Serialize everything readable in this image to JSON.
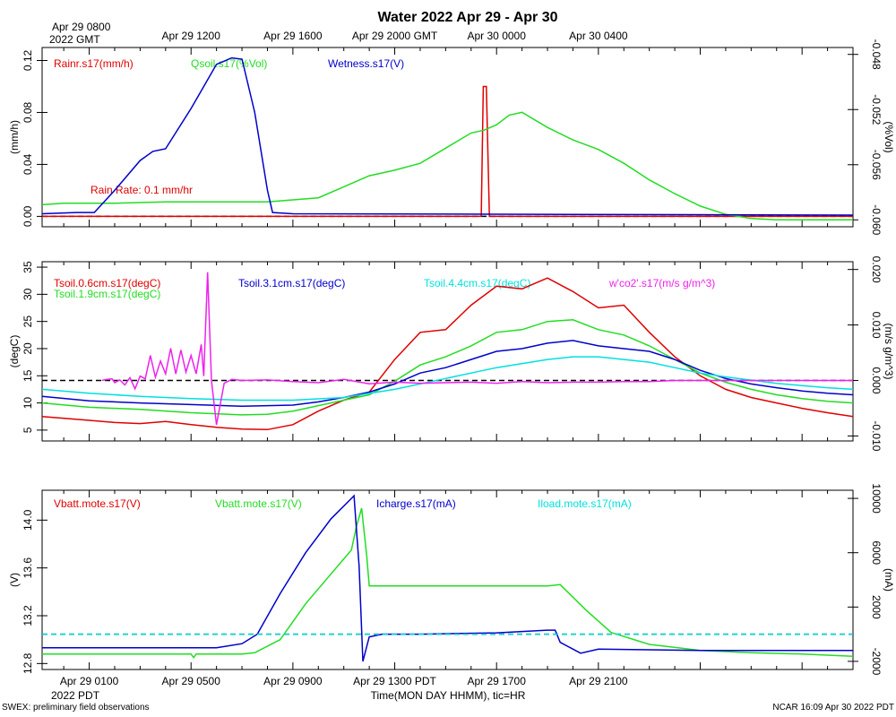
{
  "title": "Water 2022 Apr 29 - Apr 30",
  "top_axis": {
    "first_label": [
      "Apr 29 0800",
      "2022 GMT"
    ],
    "labels": [
      "Apr 29 1200",
      "Apr 29 1600",
      "Apr 29 2000 GMT",
      "Apr 30 0000",
      "Apr 30 0400"
    ]
  },
  "bottom_axis": {
    "labels": [
      "Apr 29 0100",
      "Apr 29 0500",
      "Apr 29 0900",
      "Apr 29 1300 PDT",
      "Apr 29 1700",
      "Apr 29 2100"
    ],
    "year_label": "2022 PDT",
    "xlabel": "Time(MON DAY HHMM), tic=HR"
  },
  "footer": {
    "left": "SWEX: preliminary field observations",
    "right": "NCAR 16:09 Apr 30 2022 PDT"
  },
  "colors": {
    "red": "#e00000",
    "green": "#22dd22",
    "blue": "#0000cc",
    "cyan": "#00e0e0",
    "magenta": "#ee22ee",
    "black": "#000000"
  },
  "chart_data": [
    {
      "type": "line",
      "panel": "top",
      "x_units": "hours since Apr 29 0000 PDT",
      "xlim": [
        -0.85,
        31
      ],
      "ylabel_left": "(mm/h)",
      "ylabel_right": "(%Vol)",
      "ylim_left": [
        -0.008,
        0.13
      ],
      "yticks_left": [
        "0.00",
        "0.04",
        "0.08",
        "0.12"
      ],
      "ytick_values_left": [
        0,
        0.04,
        0.08,
        0.12
      ],
      "ylim_right": [
        -0.0605,
        -0.0475
      ],
      "yticks_right": [
        "-0.060",
        "-0.056",
        "-0.052",
        "-0.048"
      ],
      "ytick_values_right": [
        -0.06,
        -0.056,
        -0.052,
        -0.048
      ],
      "legend": [
        "Rainr.s17(mm/h)",
        "Qsoil.s17(%Vol)",
        "Wetness.s17(V)"
      ],
      "annotation": "Rain Rate: 0.1 mm/hr",
      "series": [
        {
          "name": "Rainr.s17(mm/h)",
          "color": "red",
          "axis": "left",
          "x": [
            -0.85,
            16.4,
            16.48,
            16.6,
            16.72,
            31
          ],
          "y": [
            0,
            0,
            0.1,
            0.1,
            0,
            0
          ]
        },
        {
          "name": "Qsoil.s17(%Vol)",
          "color": "green",
          "axis": "right",
          "x": [
            -0.85,
            0,
            2,
            4,
            6,
            8,
            10,
            11,
            12,
            13,
            14,
            15,
            16,
            16.5,
            17,
            17.5,
            18,
            19,
            20,
            21,
            22,
            23,
            24,
            25,
            26,
            27,
            28,
            29,
            30,
            31
          ],
          "y": [
            -0.0589,
            -0.0588,
            -0.0588,
            -0.0587,
            -0.0587,
            -0.0587,
            -0.0584,
            -0.0576,
            -0.0568,
            -0.0564,
            -0.0559,
            -0.0548,
            -0.0537,
            -0.0535,
            -0.0531,
            -0.0524,
            -0.0522,
            -0.0533,
            -0.0542,
            -0.0549,
            -0.0559,
            -0.0571,
            -0.0581,
            -0.059,
            -0.0596,
            -0.0599,
            -0.06,
            -0.06,
            -0.06,
            -0.06
          ]
        },
        {
          "name": "Wetness.s17(V)",
          "color": "blue",
          "axis": "left",
          "x": [
            -0.85,
            0.5,
            1.2,
            2,
            3,
            3.5,
            4,
            5,
            5.5,
            6,
            6.6,
            7,
            7.5,
            8,
            8.2,
            9,
            31
          ],
          "y": [
            0.002,
            0.003,
            0.003,
            0.02,
            0.043,
            0.05,
            0.052,
            0.083,
            0.1,
            0.117,
            0.122,
            0.121,
            0.08,
            0.02,
            0.003,
            0.002,
            0.001
          ]
        }
      ],
      "reference_line": {
        "y": 0,
        "style": "dashed"
      }
    },
    {
      "type": "line",
      "panel": "middle",
      "x_units": "hours since Apr 29 0000 PDT",
      "xlim": [
        -0.85,
        31
      ],
      "ylabel_left": "(degC)",
      "ylabel_right": "(m/s g/m^3)",
      "ylim_left": [
        3,
        36
      ],
      "yticks_left": [
        "5",
        "10",
        "15",
        "20",
        "25",
        "30",
        "35"
      ],
      "ytick_values_left": [
        5,
        10,
        15,
        20,
        25,
        30,
        35
      ],
      "ylim_right": [
        -0.0109,
        0.0214
      ],
      "yticks_right": [
        "-0.010",
        "0.000",
        "0.010",
        "0.020"
      ],
      "ytick_values_right": [
        -0.01,
        0,
        0.01,
        0.02
      ],
      "legend": [
        "Tsoil.0.6cm.s17(degC)",
        "Tsoil.1.9cm.s17(degC)",
        "Tsoil.3.1cm.s17(degC)",
        "Tsoil.4.4cm.s17(degC)",
        "w'co2'.s17(m/s g/m^3)"
      ],
      "series": [
        {
          "name": "Tsoil.0.6cm.s17(degC)",
          "color": "red",
          "axis": "left",
          "x": [
            -0.85,
            1,
            2,
            3,
            4,
            5,
            6,
            7,
            8,
            9,
            10,
            11,
            12,
            13,
            14,
            15,
            16,
            17,
            18,
            19,
            20,
            21,
            22,
            23,
            24,
            25,
            26,
            27,
            28,
            29,
            30,
            31
          ],
          "y": [
            7.5,
            6.8,
            6.4,
            6.2,
            6.6,
            6.0,
            5.5,
            5.2,
            5.1,
            6.0,
            8.5,
            10.5,
            12.0,
            18.0,
            23.0,
            23.5,
            28.0,
            31.5,
            31.0,
            33.0,
            30.5,
            27.5,
            28.0,
            23.0,
            18.5,
            15.0,
            12.5,
            11.0,
            10.0,
            9.0,
            8.2,
            7.5
          ]
        },
        {
          "name": "Tsoil.1.9cm.s17(degC)",
          "color": "green",
          "axis": "left",
          "x": [
            -0.85,
            1,
            3,
            5,
            7,
            8,
            9,
            10,
            11,
            12,
            13,
            14,
            15,
            16,
            17,
            18,
            19,
            20,
            21,
            22,
            23,
            24,
            25,
            26,
            27,
            28,
            29,
            30,
            31
          ],
          "y": [
            10.0,
            9.2,
            8.8,
            8.2,
            7.8,
            7.9,
            8.5,
            9.5,
            10.5,
            11.5,
            14.0,
            17.0,
            18.5,
            20.5,
            23.0,
            23.5,
            25.0,
            25.3,
            23.5,
            22.5,
            20.5,
            18.0,
            15.5,
            13.8,
            12.5,
            11.5,
            10.8,
            10.3,
            10.0
          ]
        },
        {
          "name": "Tsoil.3.1cm.s17(degC)",
          "color": "blue",
          "axis": "left",
          "x": [
            -0.85,
            1,
            3,
            5,
            7,
            9,
            10,
            11,
            12,
            13,
            14,
            15,
            16,
            17,
            18,
            19,
            20,
            21,
            22,
            23,
            24,
            25,
            26,
            27,
            28,
            29,
            30,
            31
          ],
          "y": [
            11.2,
            10.4,
            10.0,
            9.7,
            9.4,
            9.6,
            10.2,
            11.0,
            12.0,
            13.5,
            15.5,
            16.5,
            18.0,
            19.5,
            20.0,
            21.0,
            21.5,
            20.5,
            20.0,
            19.5,
            18.0,
            16.0,
            14.5,
            13.5,
            12.8,
            12.2,
            11.8,
            11.5
          ]
        },
        {
          "name": "Tsoil.4.4cm.s17(degC)",
          "color": "cyan",
          "axis": "left",
          "x": [
            -0.85,
            1,
            3,
            5,
            7,
            9,
            11,
            13,
            15,
            17,
            19,
            20,
            21,
            22,
            23,
            24,
            25,
            26,
            27,
            28,
            29,
            30,
            31
          ],
          "y": [
            12.5,
            11.8,
            11.2,
            10.8,
            10.5,
            10.5,
            11.0,
            12.5,
            14.5,
            16.5,
            18.0,
            18.5,
            18.5,
            18.0,
            17.5,
            16.5,
            15.5,
            14.8,
            14.2,
            13.6,
            13.2,
            12.8,
            12.5
          ]
        },
        {
          "name": "w'co2'.s17(m/s g/m^3)",
          "color": "magenta",
          "axis": "right",
          "x": [
            1.5,
            1.7,
            1.9,
            2.0,
            2.2,
            2.4,
            2.6,
            2.8,
            3.0,
            3.2,
            3.4,
            3.6,
            3.8,
            4.0,
            4.2,
            4.4,
            4.6,
            4.8,
            5.0,
            5.2,
            5.4,
            5.5,
            5.65,
            5.8,
            6.0,
            6.3,
            6.6,
            7.0,
            8.0,
            9.0,
            10.0,
            11.0,
            12.0,
            13.0,
            14.0,
            15.0,
            16.0,
            17.0,
            18.0,
            19.0,
            20.0,
            21.0,
            22.0,
            23.0,
            24.0,
            25.0,
            26.0,
            27.0,
            28.0,
            29.0,
            30.0,
            31.0
          ],
          "y": [
            0.0,
            0.0002,
            0.0003,
            -0.0004,
            0.0001,
            -0.0008,
            0.0005,
            -0.0015,
            0.0008,
            0.0003,
            0.0045,
            0.0006,
            0.0035,
            0.0012,
            0.0058,
            0.0012,
            0.0055,
            0.0015,
            0.0045,
            0.0012,
            0.0065,
            0.0008,
            0.0195,
            0.0,
            -0.008,
            -0.0005,
            0.0002,
            0.0,
            0.0001,
            -0.0002,
            -0.0004,
            0.0002,
            -0.0006,
            -0.0003,
            -0.0005,
            -0.0004,
            -0.0003,
            -0.0005,
            -0.0002,
            -0.0004,
            -0.0003,
            -0.0003,
            -0.0002,
            -0.0002,
            0.0,
            0.0,
            0.0,
            0.0,
            0.0,
            0.0,
            0.0,
            0.0
          ]
        }
      ],
      "reference_line": {
        "axis": "right",
        "y": 0,
        "style": "dashed"
      }
    },
    {
      "type": "line",
      "panel": "bottom",
      "x_units": "hours since Apr 29 0000 PDT",
      "xlim": [
        -0.85,
        31
      ],
      "ylabel_left": "(V)",
      "ylabel_right": "(mA)",
      "ylim_left": [
        12.75,
        14.25
      ],
      "yticks_left": [
        "12.8",
        "13.2",
        "13.6",
        "14.0"
      ],
      "ytick_values_left": [
        12.8,
        13.2,
        13.6,
        14.0
      ],
      "ylim_right": [
        -2600,
        10600
      ],
      "yticks_right": [
        "-2000",
        "2000",
        "6000",
        "10000"
      ],
      "ytick_values_right": [
        -2000,
        2000,
        6000,
        10000
      ],
      "legend": [
        "Vbatt.mote.s17(V)",
        "Vbatt.mote.s17(V)",
        "Icharge.s17(mA)",
        "Iload.mote.s17(mA)"
      ],
      "series": [
        {
          "name": "Vbatt.mote.s17(V)",
          "color": "green",
          "axis": "left",
          "x": [
            -0.85,
            2,
            5,
            5.1,
            5.2,
            7,
            7.5,
            8.5,
            9.5,
            10.5,
            11.3,
            11.5,
            11.7,
            11.9,
            12,
            14,
            17,
            19,
            19.5,
            20.5,
            21.5,
            23,
            25,
            27,
            29,
            30,
            31
          ],
          "y": [
            12.88,
            12.88,
            12.88,
            12.85,
            12.88,
            12.88,
            12.89,
            13.0,
            13.3,
            13.55,
            13.75,
            13.95,
            14.1,
            13.7,
            13.45,
            13.45,
            13.45,
            13.45,
            13.46,
            13.25,
            13.06,
            12.96,
            12.91,
            12.89,
            12.88,
            12.87,
            12.86
          ]
        },
        {
          "name": "Icharge.s17(mA)",
          "color": "blue",
          "axis": "right",
          "x": [
            -0.85,
            2,
            5,
            6,
            7,
            7.6,
            8.5,
            9.5,
            10.5,
            11.3,
            11.4,
            11.6,
            11.75,
            12,
            12.5,
            14,
            17,
            19,
            19.3,
            19.5,
            20.3,
            21,
            23,
            25,
            27,
            29,
            31
          ],
          "y": [
            -1000,
            -1000,
            -1000,
            -1000,
            -700,
            0,
            3000,
            6000,
            8500,
            10000,
            10200,
            5000,
            -2000,
            -200,
            0,
            0,
            100,
            300,
            300,
            -600,
            -1400,
            -1100,
            -1150,
            -1200,
            -1200,
            -1200,
            -1200
          ]
        },
        {
          "name": "Iload.mote.s17(mA)",
          "color": "cyan",
          "axis": "right",
          "x": [
            -0.85,
            31
          ],
          "y": [
            0,
            0
          ]
        }
      ],
      "reference_line": {
        "axis": "right",
        "y": 0,
        "style": "dashed"
      }
    }
  ]
}
